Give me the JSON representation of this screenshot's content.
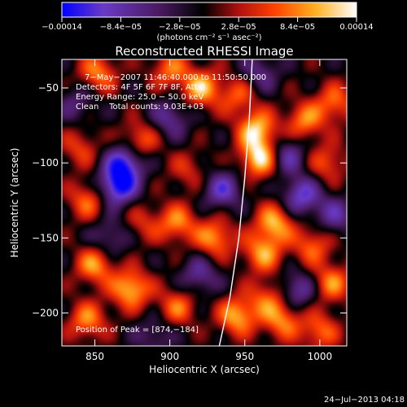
{
  "chart_data": {
    "type": "heatmap",
    "title": "Reconstructed RHESSI Image",
    "xlabel": "Heliocentric X (arcsec)",
    "ylabel": "Heliocentric Y (arcsec)",
    "xlim": [
      828,
      1018
    ],
    "ylim": [
      -222,
      -31
    ],
    "x_ticks": [
      850,
      900,
      950,
      1000
    ],
    "x_tick_labels": [
      "850",
      "900",
      "950",
      "1000"
    ],
    "y_ticks": [
      -50,
      -100,
      -150,
      -200
    ],
    "y_tick_labels": [
      "−50",
      "−100",
      "−150",
      "−200"
    ],
    "colorbar": {
      "min": -0.00014,
      "max": 0.00014,
      "ticks": [
        -0.00014,
        -8.4e-05,
        -2.8e-05,
        2.8e-05,
        8.4e-05,
        0.00014
      ],
      "tick_labels": [
        "−0.00014",
        "−8.4e−05",
        "−2.8e−05",
        "2.8e−05",
        "8.4e−05",
        "0.00014"
      ],
      "unit_label": "(photons cm⁻² s⁻¹ asec⁻²)",
      "colors": [
        "#0000ff",
        "#6a3ac8",
        "#4a1a60",
        "#000000",
        "#b01010",
        "#ff4000",
        "#ffb020",
        "#ffffff"
      ]
    },
    "annotations": [
      "7−May−2007 11:46:40.000 to 11:50:50.000",
      "Detectors: 4F 5F 6F 7F 8F, Att 0",
      "Energy Range: 25.0 − 50.0 keV",
      "Clean    Total counts: 9.03E+03"
    ],
    "peak_label": "Position of Peak = [874,−184]",
    "peak": [
      874,
      -184
    ],
    "limb": [
      [
        933,
        -222
      ],
      [
        940,
        -190
      ],
      [
        946,
        -150
      ],
      [
        950,
        -110
      ],
      [
        953,
        -70
      ],
      [
        955,
        -31
      ]
    ],
    "sources": [
      {
        "x": 852,
        "y": -40,
        "v": 9e-05
      },
      {
        "x": 900,
        "y": -38,
        "v": 8e-05
      },
      {
        "x": 921,
        "y": -50,
        "v": 0.00011
      },
      {
        "x": 945,
        "y": -55,
        "v": 7e-05
      },
      {
        "x": 958,
        "y": -78,
        "v": 0.00012
      },
      {
        "x": 960,
        "y": -97,
        "v": 0.00013
      },
      {
        "x": 990,
        "y": -72,
        "v": 9e-05
      },
      {
        "x": 1005,
        "y": -100,
        "v": 7e-05
      },
      {
        "x": 880,
        "y": -85,
        "v": 8e-05
      },
      {
        "x": 840,
        "y": -90,
        "v": 6e-05
      },
      {
        "x": 912,
        "y": -105,
        "v": 5e-05
      },
      {
        "x": 1010,
        "y": -60,
        "v": 8e-05
      },
      {
        "x": 845,
        "y": -125,
        "v": 8e-05
      },
      {
        "x": 905,
        "y": -140,
        "v": 9e-05
      },
      {
        "x": 930,
        "y": -150,
        "v": 0.0001
      },
      {
        "x": 962,
        "y": -160,
        "v": 0.0001
      },
      {
        "x": 970,
        "y": -140,
        "v": 0.00011
      },
      {
        "x": 995,
        "y": -155,
        "v": 8e-05
      },
      {
        "x": 1008,
        "y": -180,
        "v": 9e-05
      },
      {
        "x": 874,
        "y": -184,
        "v": 0.00012
      },
      {
        "x": 850,
        "y": -168,
        "v": 0.0001
      },
      {
        "x": 845,
        "y": -205,
        "v": 9e-05
      },
      {
        "x": 905,
        "y": -196,
        "v": 8e-05
      },
      {
        "x": 945,
        "y": -202,
        "v": 0.00011
      },
      {
        "x": 975,
        "y": -205,
        "v": 9e-05
      },
      {
        "x": 1000,
        "y": -212,
        "v": 8e-05
      },
      {
        "x": 882,
        "y": -140,
        "v": 5e-05
      },
      {
        "x": 965,
        "y": -190,
        "v": 7e-05
      },
      {
        "x": 870,
        "y": -100,
        "v": -0.00012
      },
      {
        "x": 865,
        "y": -116,
        "v": -0.00013
      },
      {
        "x": 935,
        "y": -118,
        "v": -9e-05
      },
      {
        "x": 988,
        "y": -122,
        "v": -0.0001
      },
      {
        "x": 978,
        "y": -95,
        "v": -8e-05
      },
      {
        "x": 900,
        "y": -70,
        "v": -7e-05
      },
      {
        "x": 960,
        "y": -40,
        "v": -6e-05
      },
      {
        "x": 985,
        "y": -185,
        "v": -8e-05
      },
      {
        "x": 920,
        "y": -175,
        "v": -7e-05
      },
      {
        "x": 860,
        "y": -150,
        "v": -6e-05
      },
      {
        "x": 838,
        "y": -60,
        "v": -5e-05
      },
      {
        "x": 1010,
        "y": -135,
        "v": -7e-05
      },
      {
        "x": 890,
        "y": -215,
        "v": -5e-05
      }
    ]
  },
  "timestamp": "24−Jul−2013 04:18"
}
